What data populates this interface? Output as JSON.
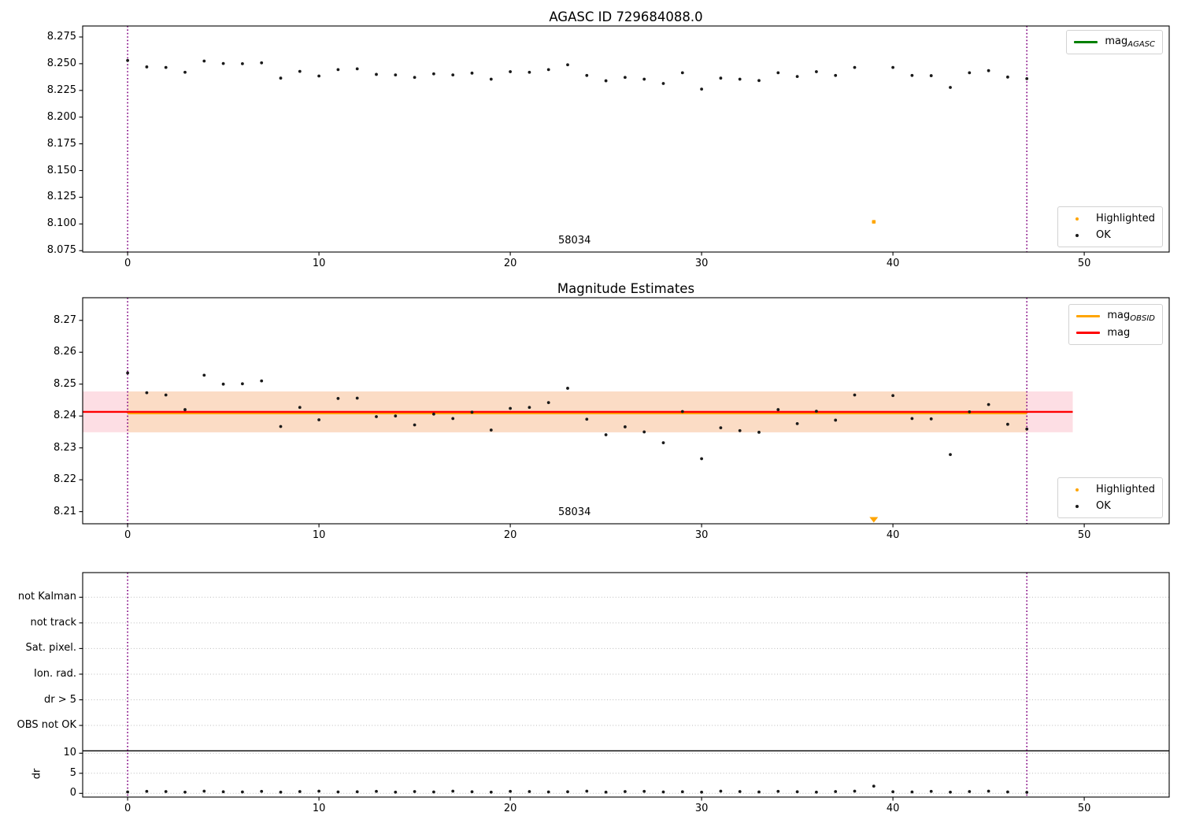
{
  "figure": {
    "background": "#ffffff",
    "titles": {
      "top": "AGASC ID 729684088.0",
      "middle": "Magnitude Estimates"
    }
  },
  "colors": {
    "point_ok": "#1a1a1a",
    "highlight_orange": "#ffa500",
    "mag_line_red": "#ff0000",
    "agasc_green": "#008000",
    "obsid_vline_purple": "#800080",
    "band_pink": "#fddee4",
    "band_peach": "#fbdcc5",
    "grid_gray": "#bbbbbb"
  },
  "chart_data": [
    {
      "type": "scatter",
      "title": "AGASC ID 729684088.0",
      "xlim": [
        -2.35,
        54.44
      ],
      "ylim": [
        8.0737,
        8.2853
      ],
      "xticks": [
        0,
        10,
        20,
        30,
        40,
        50
      ],
      "yticks": [
        "8.275",
        "8.250",
        "8.225",
        "8.200",
        "8.175",
        "8.150",
        "8.125",
        "8.100",
        "8.075"
      ],
      "grid": false,
      "vlines": {
        "x": [
          0,
          47
        ],
        "style": "dotted",
        "color": "#800080"
      },
      "annotation": {
        "text": "58034",
        "x": 22.5
      },
      "legend_top": [
        {
          "label_main": "mag",
          "label_sub": "AGASC",
          "swatch": "line",
          "color": "#008000"
        }
      ],
      "legend_bottom": [
        {
          "label": "Highlighted",
          "swatch": "dot",
          "color": "#ffa500"
        },
        {
          "label": "OK",
          "swatch": "dot",
          "color": "#1a1a1a"
        }
      ],
      "series": [
        {
          "name": "OK",
          "marker": "point",
          "color": "#1a1a1a",
          "x": [
            0,
            1,
            2,
            3,
            4,
            5,
            6,
            7,
            8,
            9,
            10,
            11,
            12,
            13,
            14,
            15,
            16,
            17,
            18,
            19,
            20,
            21,
            22,
            23,
            24,
            25,
            26,
            27,
            28,
            29,
            30,
            31,
            32,
            33,
            34,
            35,
            36,
            37,
            38,
            40,
            41,
            42,
            43,
            44,
            45,
            46,
            47
          ],
          "y": [
            8.253,
            8.247,
            8.2465,
            8.242,
            8.2525,
            8.2502,
            8.25,
            8.2508,
            8.2365,
            8.2428,
            8.2385,
            8.2445,
            8.2452,
            8.24,
            8.2395,
            8.2372,
            8.2405,
            8.2395,
            8.2412,
            8.2355,
            8.2425,
            8.242,
            8.2445,
            8.249,
            8.239,
            8.234,
            8.2372,
            8.2355,
            8.2315,
            8.2415,
            8.2262,
            8.2365,
            8.2355,
            8.2342,
            8.2415,
            8.238,
            8.2425,
            8.239,
            8.2465,
            8.2465,
            8.239,
            8.2388,
            8.2278,
            8.2415,
            8.2435,
            8.2375,
            8.236
          ]
        },
        {
          "name": "Highlighted",
          "marker": "square",
          "color": "#ffa500",
          "x": [
            39
          ],
          "y": [
            8.102
          ]
        }
      ]
    },
    {
      "type": "scatter",
      "title": "Magnitude Estimates",
      "xlim": [
        -2.35,
        54.44
      ],
      "ylim": [
        8.2062,
        8.2771
      ],
      "xticks": [
        0,
        10,
        20,
        30,
        40,
        50
      ],
      "yticks": [
        "8.27",
        "8.26",
        "8.25",
        "8.24",
        "8.23",
        "8.22",
        "8.21"
      ],
      "grid": false,
      "vlines": {
        "x": [
          0,
          47
        ],
        "style": "dotted",
        "color": "#800080"
      },
      "annotation": {
        "text": "58034",
        "x": 22.5
      },
      "mag_line": {
        "value": 8.2413,
        "color": "#ff0000",
        "x_range": [
          -2.35,
          49.4
        ]
      },
      "mag_obsid_line": {
        "value": 8.2413,
        "color": "#ffa500",
        "x_range": [
          0,
          47
        ]
      },
      "band_pink": {
        "y_range": [
          8.2349,
          8.2477
        ],
        "x_range": [
          -2.35,
          49.4
        ],
        "color": "#fddee4"
      },
      "band_orange": {
        "y_range": [
          8.2349,
          8.2477
        ],
        "x_range": [
          0,
          47
        ],
        "color": "#fbdcc5"
      },
      "offscale_low_marker": {
        "x": 39,
        "shape": "triangle-down",
        "color": "#ffa500"
      },
      "legend_top": [
        {
          "label_main": "mag",
          "label_sub": "OBSID",
          "swatch": "line",
          "color": "#ffa500"
        },
        {
          "label_main": "mag",
          "label_sub": "",
          "swatch": "line",
          "color": "#ff0000"
        }
      ],
      "legend_bottom": [
        {
          "label": "Highlighted",
          "swatch": "dot",
          "color": "#ffa500"
        },
        {
          "label": "OK",
          "swatch": "dot",
          "color": "#1a1a1a"
        }
      ],
      "series": [
        {
          "name": "OK",
          "marker": "point",
          "color": "#1a1a1a",
          "x": [
            0,
            1,
            2,
            3,
            4,
            5,
            6,
            7,
            8,
            9,
            10,
            11,
            12,
            13,
            14,
            15,
            16,
            17,
            18,
            19,
            20,
            21,
            22,
            23,
            24,
            25,
            26,
            27,
            28,
            29,
            30,
            31,
            32,
            33,
            34,
            35,
            36,
            37,
            38,
            40,
            41,
            42,
            43,
            44,
            45,
            46,
            47
          ],
          "y": [
            8.2535,
            8.2473,
            8.2466,
            8.242,
            8.2528,
            8.25,
            8.2501,
            8.251,
            8.2367,
            8.2427,
            8.2388,
            8.2455,
            8.2456,
            8.2398,
            8.24,
            8.2372,
            8.2406,
            8.2392,
            8.2412,
            8.2356,
            8.2424,
            8.2427,
            8.2442,
            8.2487,
            8.239,
            8.2341,
            8.2366,
            8.235,
            8.2316,
            8.2414,
            8.2266,
            8.2363,
            8.2354,
            8.2349,
            8.242,
            8.2376,
            8.2415,
            8.2387,
            8.2466,
            8.2464,
            8.2392,
            8.2391,
            8.2279,
            8.2413,
            8.2436,
            8.2374,
            8.2359
          ]
        }
      ]
    },
    {
      "type": "flags-and-dr",
      "flag_labels": [
        "not Kalman",
        "not track",
        "Sat. pixel.",
        "Ion. rad.",
        "dr > 5",
        "OBS not OK"
      ],
      "ylabel": "dr",
      "dr_ticks": [
        10,
        5,
        0
      ],
      "xticks": [
        0,
        10,
        20,
        30,
        40,
        50
      ],
      "xlim": [
        -2.35,
        54.44
      ],
      "grid": true,
      "separator_hline": true,
      "vlines": {
        "x": [
          0,
          47
        ],
        "style": "dotted",
        "color": "#800080"
      },
      "series": [
        {
          "name": "dr",
          "marker": "point",
          "color": "#1a1a1a",
          "x": [
            0,
            1,
            2,
            3,
            4,
            5,
            6,
            7,
            8,
            9,
            10,
            11,
            12,
            13,
            14,
            15,
            16,
            17,
            18,
            19,
            20,
            21,
            22,
            23,
            24,
            25,
            26,
            27,
            28,
            29,
            30,
            31,
            32,
            33,
            34,
            35,
            36,
            37,
            38,
            39,
            40,
            41,
            42,
            43,
            44,
            45,
            46,
            47
          ],
          "y": [
            0.35,
            0.5,
            0.45,
            0.3,
            0.55,
            0.4,
            0.35,
            0.5,
            0.3,
            0.45,
            0.55,
            0.35,
            0.4,
            0.5,
            0.3,
            0.45,
            0.35,
            0.55,
            0.4,
            0.3,
            0.5,
            0.45,
            0.35,
            0.4,
            0.55,
            0.3,
            0.45,
            0.5,
            0.35,
            0.4,
            0.3,
            0.55,
            0.45,
            0.35,
            0.5,
            0.4,
            0.3,
            0.45,
            0.55,
            1.8,
            0.4,
            0.35,
            0.5,
            0.3,
            0.45,
            0.55,
            0.35,
            0.25
          ]
        }
      ]
    }
  ]
}
